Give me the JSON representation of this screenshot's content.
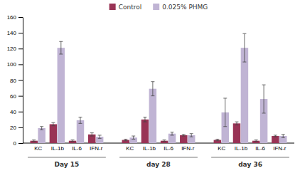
{
  "chart_data": {
    "type": "bar",
    "categories": [
      "KC",
      "IL-1b",
      "IL-6",
      "IFN-r",
      "KC",
      "IL-1b",
      "IL-6",
      "IFN-r",
      "KC",
      "IL-1b",
      "IL-6",
      "IFN-r"
    ],
    "group_labels": [
      "Day 15",
      "day 28",
      "day 36"
    ],
    "series": [
      {
        "name": "Control",
        "color": "#993355",
        "values": [
          3,
          24,
          3,
          11,
          4,
          30,
          3,
          10,
          4,
          25,
          3,
          9
        ],
        "errors": [
          1,
          2,
          1,
          2,
          1,
          3,
          1,
          1,
          1,
          2,
          1,
          1
        ]
      },
      {
        "name": "0.025% PHMG",
        "color": "#C0B4D4",
        "values": [
          19,
          121,
          29,
          8,
          7,
          69,
          12,
          10,
          39,
          121,
          56,
          9
        ],
        "errors": [
          2,
          8,
          4,
          2,
          2,
          9,
          2,
          2,
          18,
          18,
          18,
          2
        ]
      }
    ],
    "ylim": [
      0,
      160
    ],
    "yticks": [
      0,
      20,
      40,
      60,
      80,
      100,
      120,
      140,
      160
    ],
    "legend": "top",
    "grid": false
  }
}
